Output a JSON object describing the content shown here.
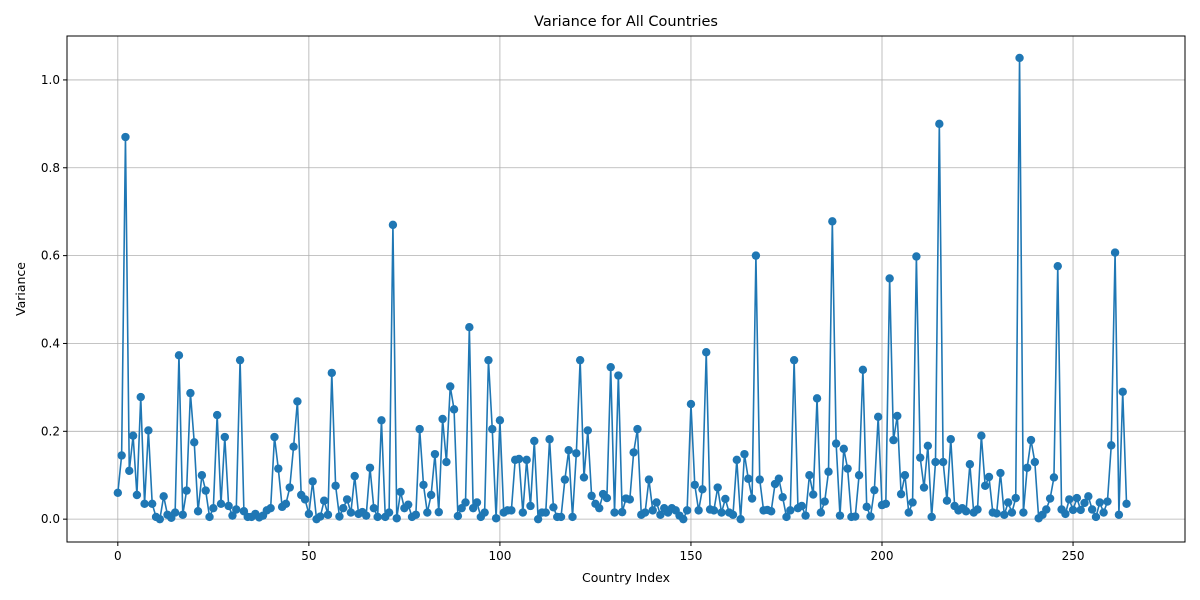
{
  "chart_data": {
    "type": "line",
    "title": "Variance for All Countries",
    "xlabel": "Country Index",
    "ylabel": "Variance",
    "xlim": [
      -13.3,
      279.3
    ],
    "ylim": [
      -0.052,
      1.1
    ],
    "xticks": [
      0,
      50,
      100,
      150,
      200,
      250
    ],
    "yticks": [
      0.0,
      0.2,
      0.4,
      0.6,
      0.8,
      1.0
    ],
    "xtick_labels": [
      "0",
      "50",
      "100",
      "150",
      "200",
      "250"
    ],
    "ytick_labels": [
      "0.0",
      "0.2",
      "0.4",
      "0.6",
      "0.8",
      "1.0"
    ],
    "grid": true,
    "markers": true,
    "color": "#1f77b4",
    "series": [
      {
        "values": [
          0.06,
          0.145,
          0.87,
          0.11,
          0.19,
          0.055,
          0.278,
          0.035,
          0.202,
          0.035,
          0.005,
          0.0,
          0.052,
          0.01,
          0.003,
          0.015,
          0.373,
          0.01,
          0.065,
          0.287,
          0.175,
          0.018,
          0.1,
          0.065,
          0.005,
          0.025,
          0.237,
          0.035,
          0.187,
          0.03,
          0.008,
          0.022,
          0.362,
          0.018,
          0.005,
          0.005,
          0.012,
          0.004,
          0.008,
          0.02,
          0.025,
          0.187,
          0.115,
          0.028,
          0.035,
          0.072,
          0.165,
          0.268,
          0.055,
          0.045,
          0.012,
          0.086,
          0.0,
          0.006,
          0.042,
          0.01,
          0.333,
          0.076,
          0.006,
          0.025,
          0.045,
          0.015,
          0.098,
          0.012,
          0.016,
          0.008,
          0.117,
          0.025,
          0.005,
          0.225,
          0.005,
          0.015,
          0.67,
          0.002,
          0.062,
          0.025,
          0.033,
          0.005,
          0.01,
          0.205,
          0.078,
          0.015,
          0.055,
          0.148,
          0.016,
          0.228,
          0.13,
          0.302,
          0.25,
          0.007,
          0.025,
          0.038,
          0.437,
          0.025,
          0.038,
          0.005,
          0.015,
          0.362,
          0.205,
          0.002,
          0.225,
          0.015,
          0.02,
          0.02,
          0.135,
          0.137,
          0.015,
          0.135,
          0.03,
          0.178,
          0.0,
          0.015,
          0.015,
          0.182,
          0.027,
          0.005,
          0.005,
          0.09,
          0.157,
          0.005,
          0.15,
          0.362,
          0.095,
          0.202,
          0.053,
          0.035,
          0.025,
          0.057,
          0.048,
          0.346,
          0.015,
          0.327,
          0.016,
          0.047,
          0.045,
          0.152,
          0.205,
          0.01,
          0.015,
          0.09,
          0.02,
          0.038,
          0.01,
          0.025,
          0.015,
          0.025,
          0.02,
          0.008,
          0.0,
          0.02,
          0.262,
          0.078,
          0.02,
          0.068,
          0.38,
          0.022,
          0.02,
          0.072,
          0.015,
          0.046,
          0.015,
          0.01,
          0.135,
          0.0,
          0.148,
          0.092,
          0.047,
          0.6,
          0.09,
          0.02,
          0.021,
          0.018,
          0.08,
          0.092,
          0.05,
          0.005,
          0.02,
          0.362,
          0.025,
          0.03,
          0.008,
          0.1,
          0.056,
          0.275,
          0.015,
          0.04,
          0.108,
          0.678,
          0.172,
          0.008,
          0.16,
          0.115,
          0.005,
          0.006,
          0.1,
          0.34,
          0.028,
          0.006,
          0.066,
          0.233,
          0.032,
          0.035,
          0.548,
          0.18,
          0.235,
          0.057,
          0.1,
          0.015,
          0.038,
          0.598,
          0.14,
          0.072,
          0.167,
          0.005,
          0.13,
          0.9,
          0.13,
          0.042,
          0.182,
          0.03,
          0.02,
          0.025,
          0.018,
          0.125,
          0.015,
          0.022,
          0.19,
          0.076,
          0.096,
          0.015,
          0.013,
          0.105,
          0.01,
          0.038,
          0.015,
          0.048,
          1.05,
          0.015,
          0.117,
          0.18,
          0.13,
          0.002,
          0.01,
          0.022,
          0.047,
          0.095,
          0.576,
          0.022,
          0.012,
          0.045,
          0.021,
          0.048,
          0.021,
          0.037,
          0.052,
          0.022,
          0.005,
          0.038,
          0.015,
          0.04,
          0.168,
          0.607,
          0.01,
          0.29,
          0.035
        ]
      }
    ]
  }
}
